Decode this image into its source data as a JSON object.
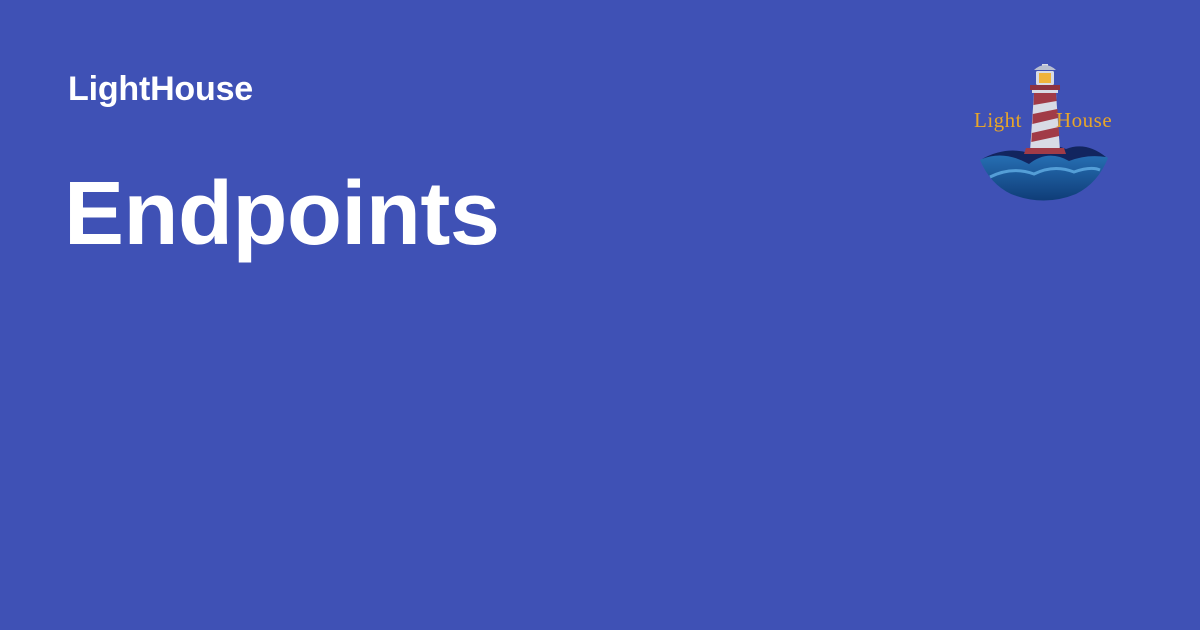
{
  "header": {
    "site_name": "LightHouse"
  },
  "main": {
    "title": "Endpoints"
  },
  "logo": {
    "icon": "lighthouse-icon",
    "text_left": "Light",
    "text_right": "House"
  },
  "colors": {
    "background": "#3f51b5",
    "text": "#ffffff",
    "logo_text": "#e7a52a",
    "tower_red": "#a13b47",
    "tower_light": "#d8dbe5",
    "wave_dark": "#12255f",
    "wave_mid": "#1b5fa4",
    "wave_light": "#3d8fd0"
  }
}
